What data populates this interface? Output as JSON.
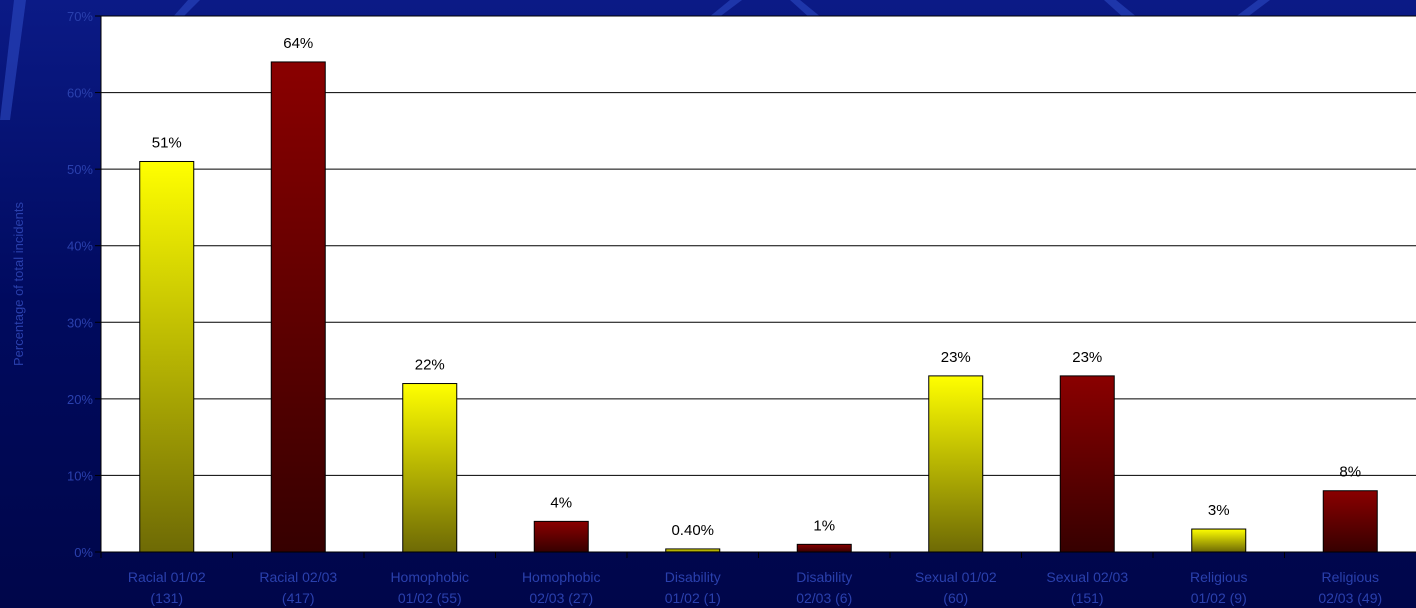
{
  "chart_data": {
    "type": "bar",
    "title": "",
    "ylabel": "Percentage of total incidents",
    "xlabel": "",
    "ylim": [
      0,
      70
    ],
    "ytick_labels": [
      "0%",
      "10%",
      "20%",
      "30%",
      "40%",
      "50%",
      "60%",
      "70%"
    ],
    "grid": true,
    "categories": [
      [
        "Racial 01/02",
        "(131)"
      ],
      [
        "Racial 02/03",
        "(417)"
      ],
      [
        "Homophobic",
        "01/02 (55)"
      ],
      [
        "Homophobic",
        "02/03 (27)"
      ],
      [
        "Disability",
        "01/02 (1)"
      ],
      [
        "Disability",
        "02/03 (6)"
      ],
      [
        "Sexual 01/02",
        "(60)"
      ],
      [
        "Sexual 02/03",
        "(151)"
      ],
      [
        "Religious",
        "01/02 (9)"
      ],
      [
        "Religious",
        "02/03 (49)"
      ]
    ],
    "values": [
      51,
      64,
      22,
      4,
      0.4,
      1,
      23,
      23,
      3,
      8
    ],
    "data_labels": [
      "51%",
      "64%",
      "22%",
      "4%",
      "0.40%",
      "1%",
      "23%",
      "23%",
      "3%",
      "8%"
    ],
    "bar_styles": [
      "yellow",
      "red",
      "yellow",
      "red",
      "yellow",
      "red",
      "yellow",
      "red",
      "yellow",
      "red"
    ],
    "colors": {
      "background": "#000a5e",
      "plot_area": "#ffffff",
      "axis_text": "#2a40ad",
      "yellow_top": "#ffff00",
      "yellow_bottom": "#6e6a05",
      "red_top": "#8a0000",
      "red_bottom": "#360000"
    }
  }
}
